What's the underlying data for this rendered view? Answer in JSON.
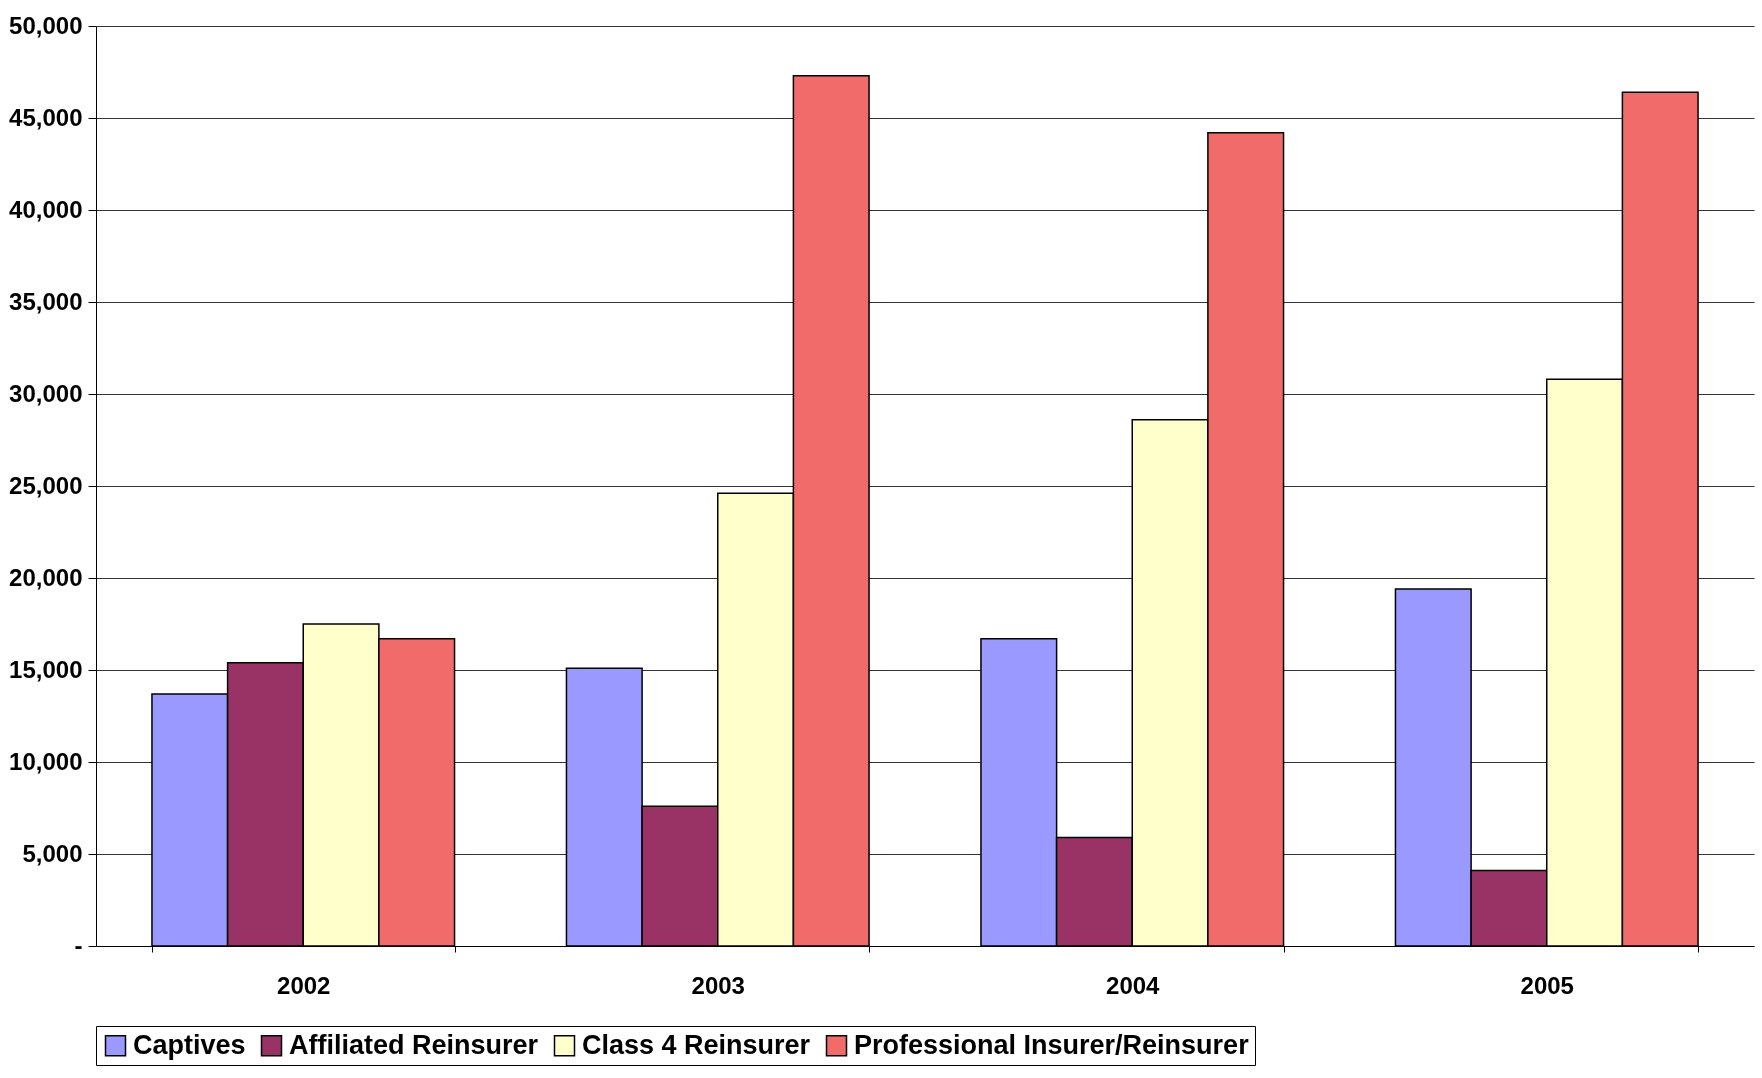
{
  "chart_data": {
    "type": "bar",
    "categories": [
      "2002",
      "2003",
      "2004",
      "2005"
    ],
    "series": [
      {
        "name": "Captives",
        "color": "#9999ff",
        "values": [
          13700,
          15100,
          16700,
          19400
        ]
      },
      {
        "name": "Affiliated Reinsurer",
        "color": "#993366",
        "values": [
          15400,
          7600,
          5900,
          4100
        ]
      },
      {
        "name": "Class 4 Reinsurer",
        "color": "#ffffcc",
        "values": [
          17500,
          24600,
          28600,
          30800
        ]
      },
      {
        "name": "Professional Insurer/Reinsurer",
        "color": "#f26b6b",
        "values": [
          16700,
          47300,
          44200,
          46400
        ]
      }
    ],
    "ylim": [
      0,
      50000
    ],
    "yticks": [
      {
        "value": 0,
        "label": "-"
      },
      {
        "value": 5000,
        "label": "5,000"
      },
      {
        "value": 10000,
        "label": "10,000"
      },
      {
        "value": 15000,
        "label": "15,000"
      },
      {
        "value": 20000,
        "label": "20,000"
      },
      {
        "value": 25000,
        "label": "25,000"
      },
      {
        "value": 30000,
        "label": "30,000"
      },
      {
        "value": 35000,
        "label": "35,000"
      },
      {
        "value": 40000,
        "label": "40,000"
      },
      {
        "value": 45000,
        "label": "45,000"
      },
      {
        "value": 50000,
        "label": "50,000"
      }
    ],
    "grid": "y",
    "legend": "bottom"
  }
}
